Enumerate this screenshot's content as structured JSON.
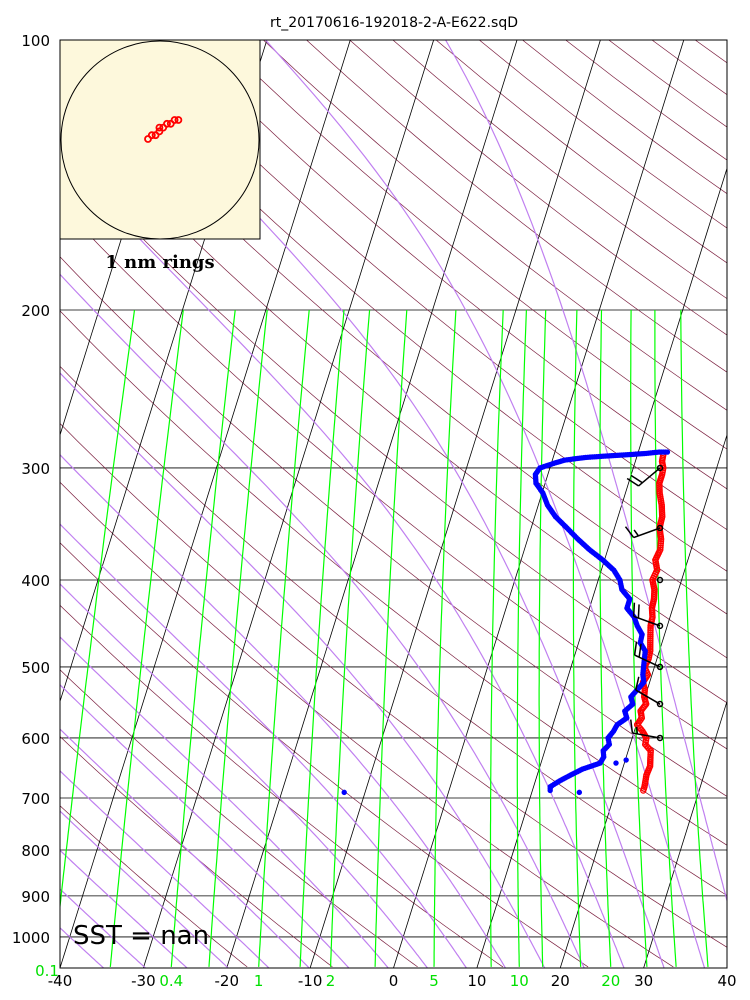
{
  "chart_data": {
    "type": "scatter",
    "title": "rt_20170616-192018-2-A-E622.sqD",
    "x_axis": {
      "ticks": [
        -40,
        -30,
        -20,
        -10,
        0,
        10,
        20,
        30,
        40
      ],
      "range": [
        -40,
        40
      ]
    },
    "y_axis": {
      "scale": "log",
      "range": [
        1050,
        100
      ],
      "ticks": [
        100,
        200,
        300,
        400,
        500,
        600,
        700,
        800,
        900,
        1000
      ]
    },
    "mixing_ratio_labels": [
      "0.1",
      "0.4",
      "1",
      "2",
      "5",
      "10",
      "20"
    ],
    "sst_label": "SST =  nan",
    "inset": {
      "label": "1 nm rings"
    },
    "colors": {
      "temperature": "#ff0000",
      "dewpoint": "#0000ff",
      "isotherm": "#000000",
      "dry_adiabat": "#7b1f3f",
      "moist_adiabat": "#c080f0",
      "mixing_ratio": "#00ff00",
      "inset_bg": "#fdf8dc"
    },
    "series": [
      {
        "name": "temperature",
        "points": [
          [
            23.3,
            690
          ],
          [
            23.3,
            680
          ],
          [
            23.1,
            660
          ],
          [
            23.2,
            645
          ],
          [
            22.9,
            630
          ],
          [
            22.7,
            620
          ],
          [
            21.8,
            610
          ],
          [
            21.7,
            600
          ],
          [
            21,
            590
          ],
          [
            20.1,
            580
          ],
          [
            20.4,
            570
          ],
          [
            20,
            560
          ],
          [
            20.4,
            550
          ],
          [
            19.9,
            540
          ],
          [
            19.7,
            530
          ],
          [
            19.2,
            520
          ],
          [
            19.5,
            510
          ],
          [
            18.8,
            500
          ],
          [
            19,
            490
          ],
          [
            18.9,
            480
          ],
          [
            18.6,
            470
          ],
          [
            18.3,
            460
          ],
          [
            18,
            450
          ],
          [
            17.9,
            440
          ],
          [
            17.5,
            430
          ],
          [
            17.4,
            420
          ],
          [
            17.1,
            410
          ],
          [
            16.5,
            400
          ],
          [
            16.7,
            390
          ],
          [
            16.1,
            380
          ],
          [
            16.3,
            370
          ],
          [
            16,
            360
          ],
          [
            15.4,
            350
          ],
          [
            15.3,
            340
          ],
          [
            14.8,
            330
          ],
          [
            14.1,
            320
          ],
          [
            13.7,
            312
          ],
          [
            13.7,
            305
          ],
          [
            13.6,
            300
          ],
          [
            13.2,
            295
          ],
          [
            13.1,
            290
          ]
        ]
      },
      {
        "name": "dewpoint",
        "points": [
          [
            12.2,
            690
          ],
          [
            12,
            680
          ],
          [
            12.9,
            670
          ],
          [
            14,
            660
          ],
          [
            15.2,
            650
          ],
          [
            17.1,
            640
          ],
          [
            17.3,
            630
          ],
          [
            17,
            620
          ],
          [
            17.5,
            610
          ],
          [
            17.1,
            600
          ],
          [
            17.5,
            590
          ],
          [
            17.7,
            580
          ],
          [
            18.6,
            570
          ],
          [
            18.1,
            560
          ],
          [
            18.8,
            550
          ],
          [
            18.3,
            540
          ],
          [
            18.8,
            530
          ],
          [
            19.3,
            520
          ],
          [
            18.9,
            510
          ],
          [
            18.7,
            500
          ],
          [
            18.5,
            490
          ],
          [
            18.3,
            480
          ],
          [
            17.4,
            470
          ],
          [
            17.3,
            460
          ],
          [
            16.4,
            450
          ],
          [
            15.7,
            440
          ],
          [
            14.5,
            430
          ],
          [
            14.5,
            420
          ],
          [
            13.2,
            410
          ],
          [
            12.6,
            400
          ],
          [
            11.5,
            390
          ],
          [
            9.8,
            380
          ],
          [
            7.8,
            370
          ],
          [
            6,
            360
          ],
          [
            4.3,
            350
          ],
          [
            2.5,
            340
          ],
          [
            1.1,
            330
          ],
          [
            0.1,
            320
          ],
          [
            -1.1,
            312
          ],
          [
            -1.5,
            305
          ],
          [
            -1.2,
            300
          ],
          [
            0.5,
            296
          ],
          [
            1.5,
            294
          ],
          [
            3.9,
            292
          ],
          [
            6.2,
            291
          ],
          [
            8.8,
            290
          ],
          [
            11,
            289
          ],
          [
            12.5,
            288
          ],
          [
            13.5,
            288
          ]
        ]
      }
    ],
    "outliers": [
      {
        "series": "dewpoint",
        "points": [
          [
            -12.5,
            690
          ],
          [
            15.7,
            690
          ],
          [
            19,
            640
          ],
          [
            20.1,
            635
          ]
        ]
      }
    ],
    "wind_barbs": [
      {
        "p": 300,
        "dir": 230,
        "speed_kt": 20
      },
      {
        "p": 350,
        "dir": 250,
        "speed_kt": 15
      },
      {
        "p": 400,
        "dir": 0,
        "speed_kt": 0
      },
      {
        "p": 450,
        "dir": 290,
        "speed_kt": 20
      },
      {
        "p": 500,
        "dir": 295,
        "speed_kt": 20
      },
      {
        "p": 550,
        "dir": 300,
        "speed_kt": 10
      },
      {
        "p": 600,
        "dir": 280,
        "speed_kt": 15
      }
    ],
    "hodograph_points": [
      [
        0,
        0
      ],
      [
        1,
        1
      ],
      [
        2,
        1
      ],
      [
        3,
        2
      ],
      [
        3,
        3
      ],
      [
        4,
        3
      ],
      [
        5,
        4
      ],
      [
        6,
        4
      ],
      [
        7,
        5
      ],
      [
        8,
        5
      ]
    ]
  }
}
